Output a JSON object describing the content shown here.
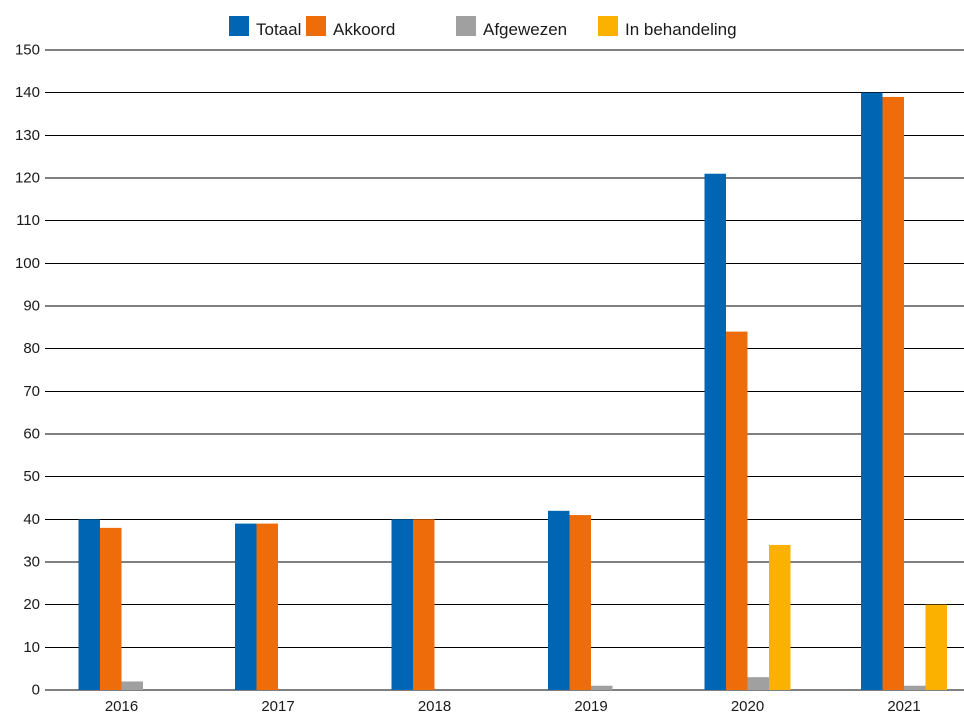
{
  "chart_data": {
    "type": "bar",
    "title": "",
    "xlabel": "",
    "ylabel": "",
    "categories": [
      "2016",
      "2017",
      "2018",
      "2019",
      "2020",
      "2021"
    ],
    "series": [
      {
        "name": "Totaal",
        "color": "#0066b3",
        "values": [
          40,
          39,
          40,
          42,
          121,
          140
        ]
      },
      {
        "name": "Akkoord",
        "color": "#ef6c0b",
        "values": [
          38,
          39,
          40,
          41,
          84,
          139
        ]
      },
      {
        "name": "Afgewezen",
        "color": "#a0a0a0",
        "values": [
          2,
          0,
          0,
          1,
          3,
          1
        ]
      },
      {
        "name": "In behandeling",
        "color": "#fbb100",
        "values": [
          0,
          0,
          0,
          0,
          34,
          20
        ]
      }
    ],
    "ylim": [
      0,
      150
    ],
    "yticks": [
      "0",
      "10",
      "20",
      "30",
      "40",
      "50",
      "60",
      "70",
      "80",
      "90",
      "100",
      "110",
      "120",
      "130",
      "140",
      "150"
    ],
    "grid": true,
    "legend_position": "top-center"
  }
}
